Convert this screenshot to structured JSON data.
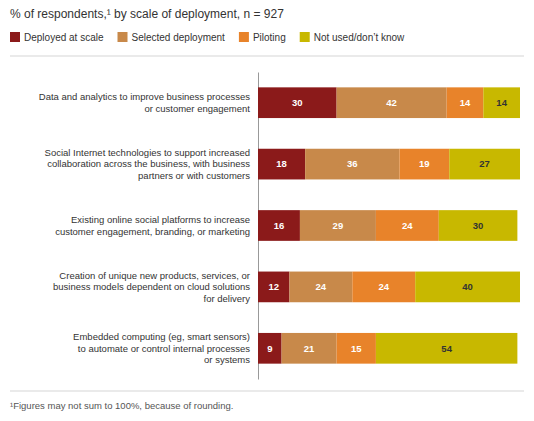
{
  "chart_data": {
    "type": "bar",
    "orientation": "horizontal",
    "stacked": true,
    "data_labels": true,
    "legend": "top",
    "tick_labels": "y",
    "title": "% of respondents,¹ by scale of deployment, n = 927",
    "annotations": [
      "¹Figures may not sum to 100%, because of rounding."
    ],
    "categories": [
      "Data and analytics to improve business processes\nor customer engagement",
      "Social Internet technologies to support increased\ncollaboration across the business, with business\npartners or with customers",
      "Existing online social platforms to increase\ncustomer engagement, branding, or marketing",
      "Creation of unique new products, services, or\nbusiness models dependent on cloud solutions\nfor delivery",
      "Embedded computing (eg, smart sensors)\nto automate or control internal processes\nor systems"
    ],
    "series": [
      {
        "name": "Deployed at scale",
        "color": "#8B1A1A",
        "values": [
          30,
          18,
          16,
          12,
          9
        ]
      },
      {
        "name": "Selected deployment",
        "color": "#C8894A",
        "values": [
          42,
          36,
          29,
          24,
          21
        ]
      },
      {
        "name": "Piloting",
        "color": "#E8832A",
        "values": [
          14,
          19,
          24,
          24,
          15
        ]
      },
      {
        "name": "Not used/don’t know",
        "color": "#C8B800",
        "values": [
          14,
          27,
          30,
          40,
          54
        ]
      }
    ],
    "xlim": [
      0,
      100
    ]
  }
}
